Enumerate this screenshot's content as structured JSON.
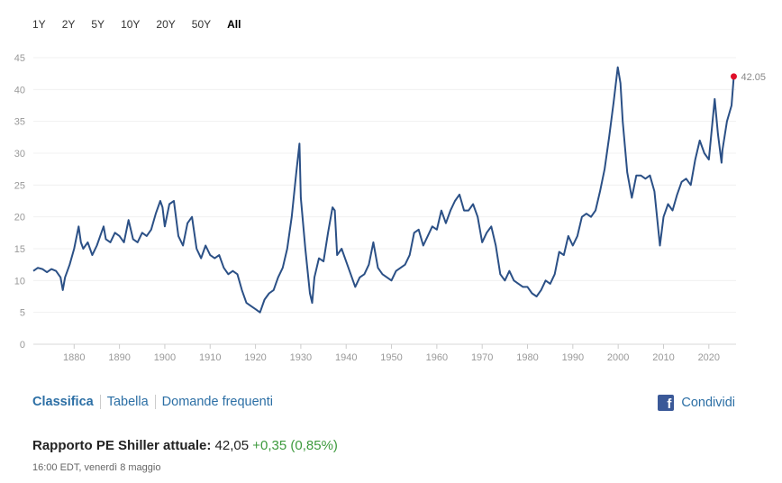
{
  "range_buttons": [
    "1Y",
    "2Y",
    "5Y",
    "10Y",
    "20Y",
    "50Y",
    "All"
  ],
  "active_range": "All",
  "nav": {
    "classifica": "Classifica",
    "tabella": "Tabella",
    "domande": "Domande frequenti"
  },
  "share": {
    "label": "Condividi",
    "icon": "facebook-icon"
  },
  "current": {
    "label": "Rapporto PE Shiller attuale:",
    "value": "42,05",
    "change": "+0,35 (0,85%)"
  },
  "timestamp": "16:00 EDT, venerdì 8 maggio",
  "colors": {
    "line": "#2b5086",
    "marker": "#e0102a",
    "positive": "#3d9a3d",
    "link": "#2c6fa5"
  },
  "chart_data": {
    "type": "line",
    "xlim": [
      1871,
      2026
    ],
    "ylim": [
      0,
      45
    ],
    "yticks": [
      0,
      5,
      10,
      15,
      20,
      25,
      30,
      35,
      40,
      45
    ],
    "xticks": [
      1880,
      1890,
      1900,
      1910,
      1920,
      1930,
      1940,
      1950,
      1960,
      1970,
      1980,
      1990,
      2000,
      2010,
      2020
    ],
    "last_label": "42.05",
    "series": [
      {
        "x": [
          1871,
          1872,
          1873,
          1874,
          1875,
          1876,
          1877,
          1877.5,
          1878,
          1879,
          1880,
          1881,
          1881.5,
          1882,
          1883,
          1884,
          1885,
          1886,
          1886.5,
          1887,
          1888,
          1889,
          1890,
          1891,
          1892,
          1893,
          1894,
          1895,
          1896,
          1897,
          1898,
          1899,
          1899.5,
          1900,
          1901,
          1902,
          1903,
          1904,
          1905,
          1906,
          1907,
          1908,
          1909,
          1910,
          1911,
          1912,
          1913,
          1914,
          1915,
          1916,
          1917,
          1918,
          1919,
          1920,
          1921,
          1922,
          1923,
          1924,
          1925,
          1926,
          1927,
          1928,
          1929,
          1929.7,
          1930,
          1931,
          1932,
          1932.5,
          1933,
          1934,
          1935,
          1936,
          1937,
          1937.5,
          1938,
          1939,
          1940,
          1941,
          1942,
          1943,
          1944,
          1945,
          1946,
          1947,
          1948,
          1949,
          1950,
          1951,
          1952,
          1953,
          1954,
          1955,
          1956,
          1957,
          1958,
          1959,
          1960,
          1961,
          1962,
          1963,
          1964,
          1965,
          1966,
          1967,
          1968,
          1969,
          1970,
          1971,
          1972,
          1973,
          1974,
          1975,
          1976,
          1977,
          1978,
          1979,
          1980,
          1981,
          1982,
          1983,
          1984,
          1985,
          1986,
          1987,
          1988,
          1989,
          1990,
          1991,
          1992,
          1993,
          1994,
          1995,
          1996,
          1997,
          1998,
          1999,
          1999.9,
          2000.5,
          2001,
          2002,
          2003,
          2004,
          2005,
          2006,
          2007,
          2008,
          2009.2,
          2010,
          2011,
          2012,
          2013,
          2014,
          2015,
          2016,
          2017,
          2018,
          2019,
          2020,
          2021.3,
          2022,
          2022.8,
          2023,
          2024,
          2025,
          2025.5
        ],
        "y": [
          11.5,
          12.0,
          11.8,
          11.3,
          11.8,
          11.5,
          10.5,
          8.5,
          10.5,
          12.5,
          15.0,
          18.5,
          16.0,
          15.0,
          16.0,
          14.0,
          15.5,
          17.5,
          18.5,
          16.5,
          16.0,
          17.5,
          17.0,
          16.0,
          19.5,
          16.5,
          16.0,
          17.5,
          17.0,
          18.0,
          20.5,
          22.5,
          21.5,
          18.5,
          22.0,
          22.5,
          17.0,
          15.5,
          19.0,
          20.0,
          15.0,
          13.5,
          15.5,
          14.0,
          13.5,
          14.0,
          12.0,
          11.0,
          11.5,
          11.0,
          8.5,
          6.5,
          6.0,
          5.5,
          5.0,
          7.0,
          8.0,
          8.5,
          10.5,
          12.0,
          15.0,
          20.0,
          27.0,
          31.5,
          23.0,
          15.0,
          8.0,
          6.5,
          10.5,
          13.5,
          13.0,
          17.5,
          21.5,
          21.0,
          14.0,
          15.0,
          13.0,
          11.0,
          9.0,
          10.5,
          11.0,
          12.5,
          16.0,
          12.0,
          11.0,
          10.5,
          10.0,
          11.5,
          12.0,
          12.5,
          14.0,
          17.5,
          18.0,
          15.5,
          17.0,
          18.5,
          18.0,
          21.0,
          19.0,
          21.0,
          22.5,
          23.5,
          21.0,
          21.0,
          22.0,
          20.0,
          16.0,
          17.5,
          18.5,
          15.5,
          11.0,
          10.0,
          11.5,
          10.0,
          9.5,
          9.0,
          9.0,
          8.0,
          7.5,
          8.5,
          10.0,
          9.5,
          11.0,
          14.5,
          14.0,
          17.0,
          15.5,
          17.0,
          20.0,
          20.5,
          20.0,
          21.0,
          24.0,
          27.5,
          32.5,
          38.0,
          43.5,
          41.0,
          35.0,
          27.0,
          23.0,
          26.5,
          26.5,
          26.0,
          26.5,
          24.0,
          15.5,
          20.0,
          22.0,
          21.0,
          23.5,
          25.5,
          26.0,
          25.0,
          29.0,
          32.0,
          30.0,
          29.0,
          38.5,
          33.0,
          28.5,
          30.5,
          35.0,
          37.5,
          42.05
        ]
      }
    ]
  }
}
